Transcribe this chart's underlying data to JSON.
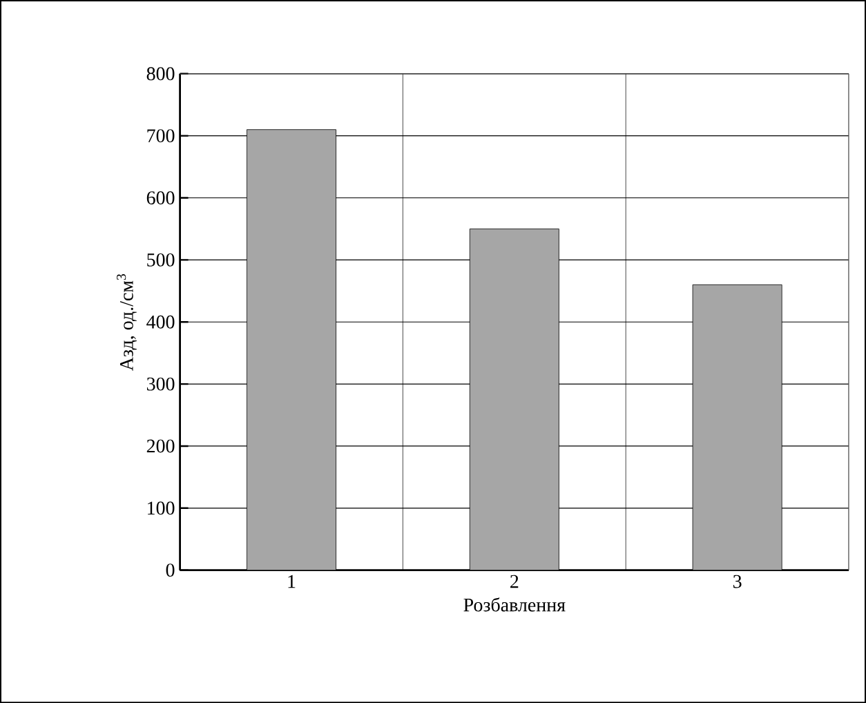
{
  "chart_data": {
    "type": "bar",
    "xlabel": "Розбавлення",
    "ylabel": "Азд, од./см$^{3}$",
    "categories": [
      "1",
      "2",
      "3"
    ],
    "values": [
      710,
      550,
      460
    ],
    "color": "#a6a6a6",
    "ylim": [
      0,
      800
    ],
    "yticks": [
      0,
      100,
      200,
      300,
      400,
      500,
      600,
      700,
      800
    ],
    "grid": true
  }
}
